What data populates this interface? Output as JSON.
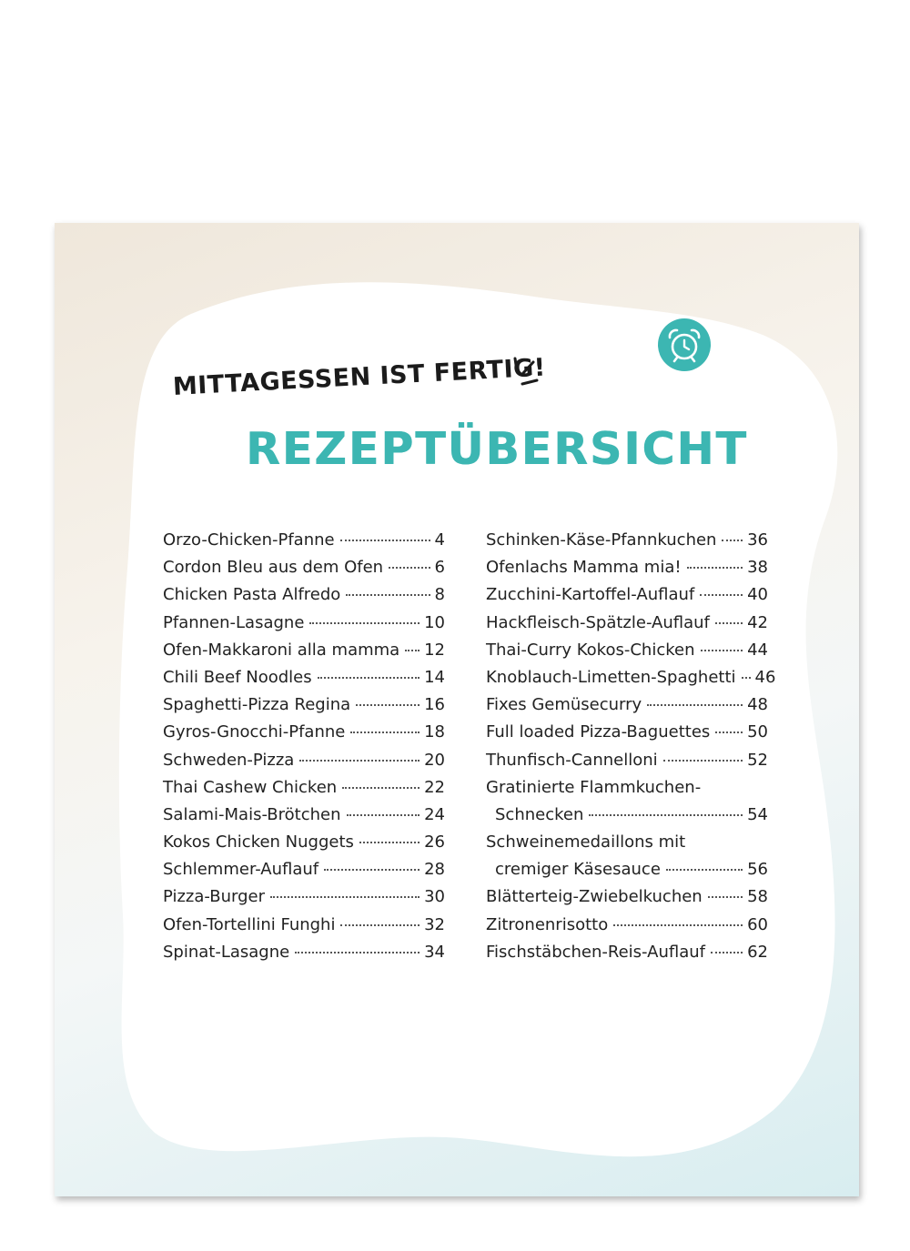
{
  "header": {
    "subtitle": "MITTAGESSEN IST FERTIG!",
    "title": "REZEPTÜBERSICHT"
  },
  "icons": {
    "badge": "alarm-clock-icon",
    "accent": "exclamation-lines-icon"
  },
  "colors": {
    "accent": "#3cb6b2",
    "text": "#222222"
  },
  "toc": {
    "left": [
      {
        "title": "Orzo-Chicken-Pfanne",
        "page": "4"
      },
      {
        "title": "Cordon Bleu aus dem Ofen",
        "page": "6"
      },
      {
        "title": "Chicken Pasta Alfredo",
        "page": "8"
      },
      {
        "title": "Pfannen-Lasagne",
        "page": "10"
      },
      {
        "title": "Ofen-Makkaroni alla mamma",
        "page": "12"
      },
      {
        "title": "Chili Beef Noodles",
        "page": "14"
      },
      {
        "title": "Spaghetti-Pizza Regina",
        "page": "16"
      },
      {
        "title": "Gyros-Gnocchi-Pfanne",
        "page": "18"
      },
      {
        "title": "Schweden-Pizza",
        "page": "20"
      },
      {
        "title": "Thai Cashew Chicken",
        "page": "22"
      },
      {
        "title": "Salami-Mais-Brötchen",
        "page": "24"
      },
      {
        "title": "Kokos Chicken Nuggets",
        "page": "26"
      },
      {
        "title": "Schlemmer-Auflauf",
        "page": "28"
      },
      {
        "title": "Pizza-Burger",
        "page": "30"
      },
      {
        "title": "Ofen-Tortellini Funghi",
        "page": "32"
      },
      {
        "title": "Spinat-Lasagne",
        "page": "34"
      }
    ],
    "right": [
      {
        "title": "Schinken-Käse-Pfannkuchen",
        "page": "36"
      },
      {
        "title": "Ofenlachs Mamma mia!",
        "page": "38"
      },
      {
        "title": "Zucchini-Kartoffel-Auflauf",
        "page": "40"
      },
      {
        "title": "Hackfleisch-Spätzle-Auflauf",
        "page": "42"
      },
      {
        "title": "Thai-Curry Kokos-Chicken",
        "page": "44"
      },
      {
        "title": "Knoblauch-Limetten-Spaghetti",
        "page": "46"
      },
      {
        "title": "Fixes Gemüsecurry",
        "page": "48"
      },
      {
        "title": "Full loaded Pizza-Baguettes",
        "page": "50"
      },
      {
        "title": "Thunfisch-Cannelloni",
        "page": "52"
      },
      {
        "title": "Gratinierte Flammkuchen-",
        "page": ""
      },
      {
        "title": "Schnecken",
        "page": "54"
      },
      {
        "title": "Schweinemedaillons mit",
        "page": ""
      },
      {
        "title": "cremiger Käsesauce",
        "page": "56"
      },
      {
        "title": "Blätterteig-Zwiebelkuchen",
        "page": "58"
      },
      {
        "title": "Zitronenrisotto",
        "page": "60"
      },
      {
        "title": "Fischstäbchen-Reis-Auflauf",
        "page": "62"
      }
    ]
  }
}
